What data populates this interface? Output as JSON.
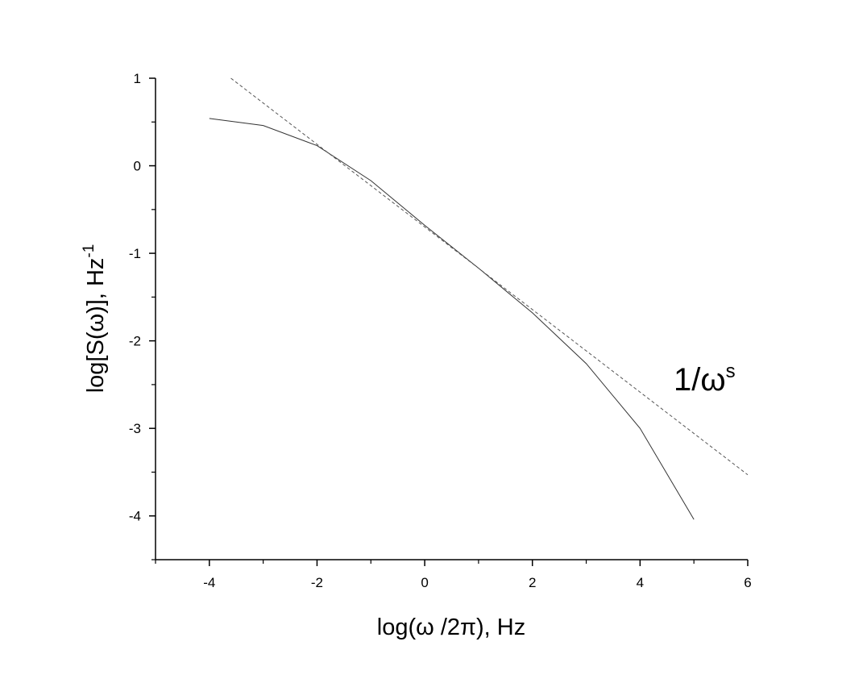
{
  "chart_data": {
    "type": "line",
    "x_label": "log(ω /2π), Hz",
    "y_label": {
      "text": "log[S(ω)], Hz",
      "sup": "-1"
    },
    "annotation": {
      "text": "1/ω",
      "sup": "s"
    },
    "series": [
      {
        "color": "#333333",
        "style": "solid",
        "x": [
          -4,
          -3,
          -2,
          -1,
          0,
          1,
          2,
          3,
          4,
          5
        ],
        "values": [
          0.54,
          0.46,
          0.23,
          -0.17,
          -0.68,
          -1.17,
          -1.68,
          -2.26,
          -3.0,
          -4.04
        ]
      },
      {
        "color": "#555555",
        "style": "dashed",
        "x": [
          -3.6,
          6
        ],
        "values": [
          1.0,
          -3.53
        ]
      }
    ],
    "xlim": [
      -5,
      6
    ],
    "xticks": [
      -4,
      -2,
      0,
      2,
      4,
      6
    ],
    "ylim": [
      -4.5,
      1
    ],
    "yticks": [
      1,
      0,
      -1,
      -2,
      -3,
      -4
    ],
    "grid": false
  }
}
